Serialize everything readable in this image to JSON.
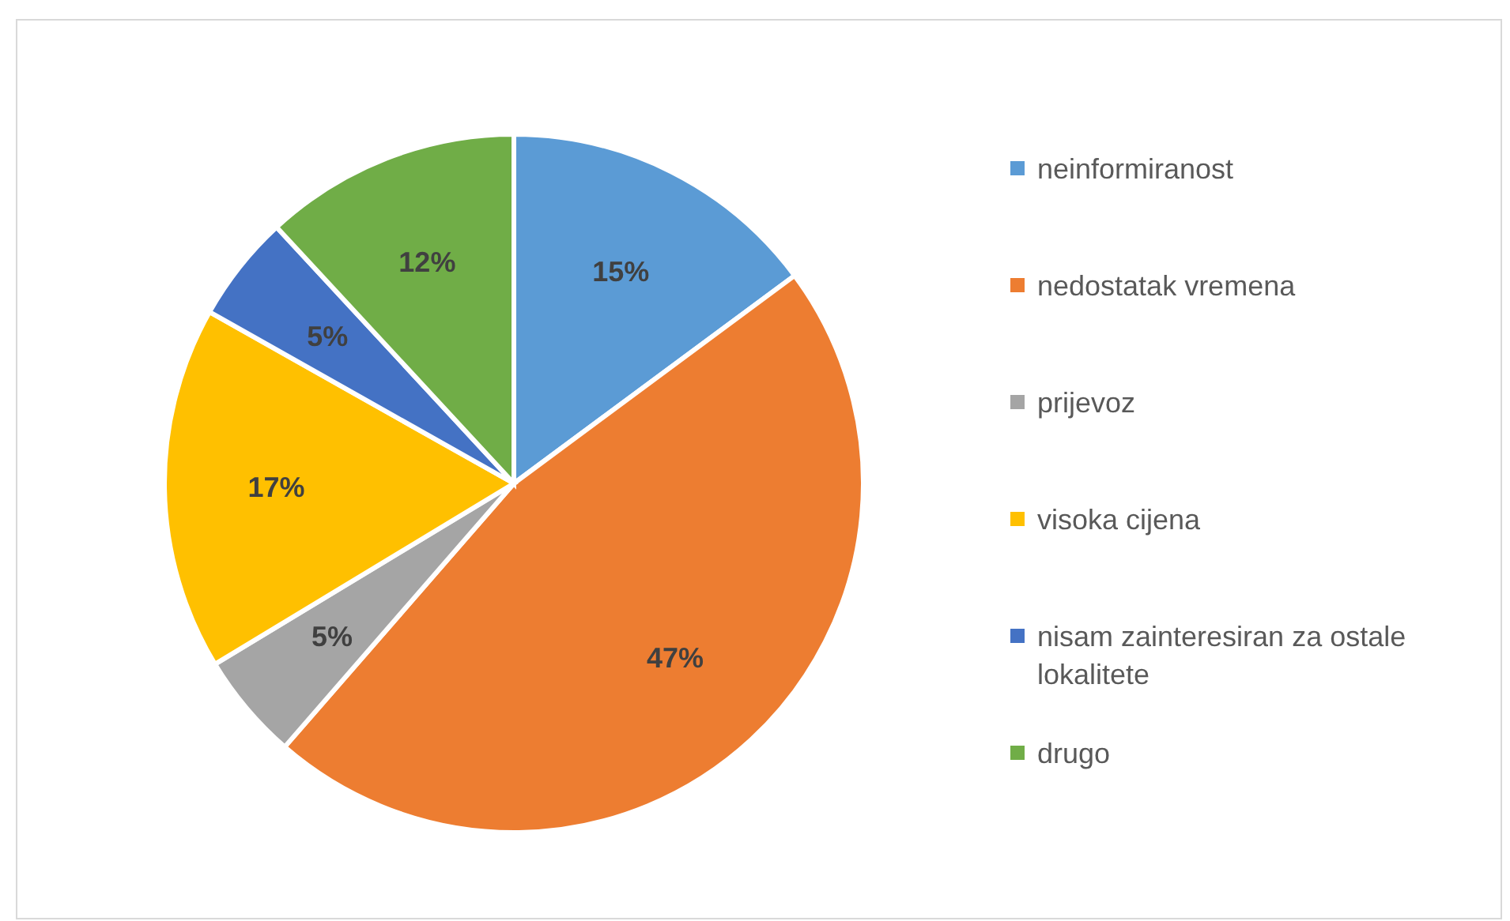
{
  "chart_data": {
    "type": "pie",
    "categories": [
      "neinformiranost",
      "nedostatak vremena",
      "prijevoz",
      "visoka cijena",
      "nisam zainteresiran za ostale lokalitete",
      "drugo"
    ],
    "values": [
      15,
      47,
      5,
      17,
      5,
      12
    ],
    "colors": [
      "#5b9bd5",
      "#ed7d31",
      "#a5a5a5",
      "#ffc000",
      "#4472c4",
      "#70ad47"
    ],
    "value_labels": [
      "15%",
      "47%",
      "5%",
      "17%",
      "5%",
      "12%"
    ],
    "legend": "right"
  }
}
